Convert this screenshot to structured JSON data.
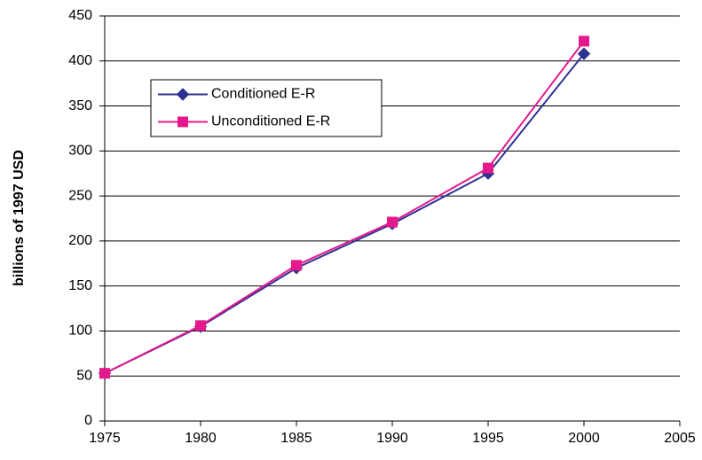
{
  "chart_data": {
    "type": "line",
    "ylabel": "billions of 1997 USD",
    "x": [
      1975,
      1980,
      1985,
      1990,
      1995,
      2000
    ],
    "series": [
      {
        "name": "Conditioned E-R",
        "color": "#2e3192",
        "marker": "diamond",
        "values": [
          53,
          105,
          170,
          219,
          275,
          408
        ]
      },
      {
        "name": "Unconditioned E-R",
        "color": "#e6198c",
        "marker": "square",
        "values": [
          53,
          106,
          173,
          221,
          281,
          422
        ]
      }
    ],
    "xlim": [
      1975,
      2005
    ],
    "xticks": [
      1975,
      1980,
      1985,
      1990,
      1995,
      2000,
      2005
    ],
    "ylim": [
      0,
      450
    ],
    "yticks": [
      0,
      50,
      100,
      150,
      200,
      250,
      300,
      350,
      400,
      450
    ],
    "grid": true
  }
}
